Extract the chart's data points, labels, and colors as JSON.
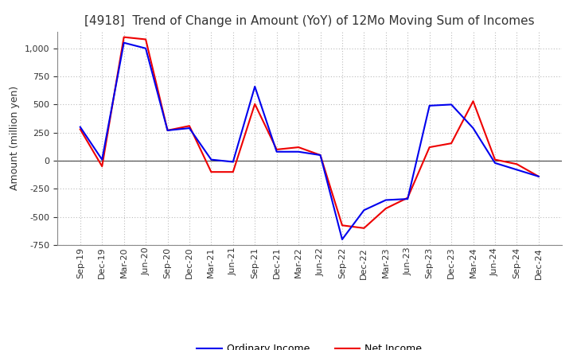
{
  "title": "[4918]  Trend of Change in Amount (YoY) of 12Mo Moving Sum of Incomes",
  "ylabel": "Amount (million yen)",
  "title_fontsize": 11,
  "label_fontsize": 9,
  "tick_fontsize": 8,
  "background_color": "#ffffff",
  "grid_color": "#bbbbbb",
  "x_labels": [
    "Sep-19",
    "Dec-19",
    "Mar-20",
    "Jun-20",
    "Sep-20",
    "Dec-20",
    "Mar-21",
    "Jun-21",
    "Sep-21",
    "Dec-21",
    "Mar-22",
    "Jun-22",
    "Sep-22",
    "Dec-22",
    "Mar-23",
    "Jun-23",
    "Sep-23",
    "Dec-23",
    "Mar-24",
    "Jun-24",
    "Sep-24",
    "Dec-24"
  ],
  "ordinary_income": [
    300,
    10,
    1050,
    1000,
    270,
    290,
    10,
    -10,
    660,
    80,
    80,
    50,
    -700,
    -440,
    -350,
    -340,
    490,
    500,
    290,
    -20,
    -80,
    -140
  ],
  "net_income": [
    280,
    -50,
    1100,
    1080,
    270,
    310,
    -100,
    -100,
    505,
    100,
    120,
    50,
    -575,
    -600,
    -425,
    -330,
    120,
    155,
    530,
    10,
    -30,
    -140
  ],
  "ordinary_color": "#0000ee",
  "net_color": "#ee0000",
  "ylim": [
    -750,
    1150
  ],
  "yticks": [
    -750,
    -500,
    -250,
    0,
    250,
    500,
    750,
    1000
  ]
}
